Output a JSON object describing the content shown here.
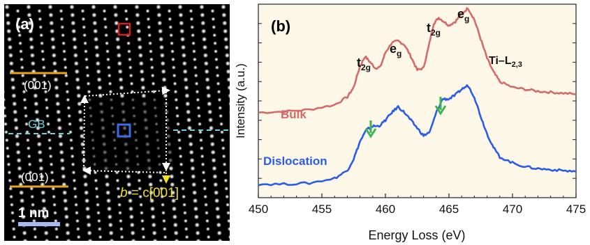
{
  "panel_a": {
    "label": "(a)",
    "plane_top": "(001)",
    "plane_bottom": "(001)",
    "gb_label": "GB",
    "burgers_italic": "b",
    "burgers_rest": " = c[001]",
    "scale_label": "1 nm",
    "colors": {
      "plane_line": "#e8a31c",
      "gb_line": "#6fd3d8",
      "red_box": "#d42020",
      "blue_box": "#3a6ee8",
      "burgers": "#f0e020",
      "scale_bar": "#a8b8f0",
      "background": "#000000"
    },
    "icons": [
      "red-square-marker",
      "blue-square-marker",
      "burgers-circuit-arrows"
    ]
  },
  "panel_b": {
    "label": "(b)",
    "edge_label": "Ti–L",
    "edge_sub": "2,3",
    "peaks": [
      {
        "main": "t",
        "sub": "2g"
      },
      {
        "main": "e",
        "sub": "g"
      },
      {
        "main": "t",
        "sub": "2g"
      },
      {
        "main": "e",
        "sub": "g"
      }
    ],
    "bulk_label": "Bulk",
    "dislocation_label": "Dislocation",
    "arrow_icons": [
      "green-down-arrow-icon",
      "green-down-arrow-icon"
    ],
    "colors": {
      "bulk": "#d46a6a",
      "dislocation": "#2a5ce8",
      "arrow": "#3cb550",
      "panel_bg": "#fdf7e8"
    }
  },
  "chart_data": {
    "type": "line",
    "xlabel": "Energy Loss (eV)",
    "ylabel": "Intensity (a.u.)",
    "xlim": [
      450,
      475
    ],
    "ylim": [
      0,
      10
    ],
    "x_ticks": [
      "450",
      "455",
      "460",
      "465",
      "470",
      "475"
    ],
    "y_ticks_labeled": false,
    "grid": false,
    "series": [
      {
        "name": "Bulk",
        "x": [
          450,
          452,
          454,
          456,
          457,
          457.5,
          458,
          458.4,
          458.8,
          459.2,
          459.6,
          460,
          460.5,
          461,
          461.5,
          462,
          462.5,
          463,
          463.4,
          463.8,
          464.2,
          464.6,
          465,
          465.5,
          466,
          466.5,
          467,
          467.5,
          468,
          468.5,
          469,
          470,
          471,
          472,
          473,
          474,
          475
        ],
        "y": [
          4.4,
          4.45,
          4.55,
          4.8,
          5.2,
          5.7,
          6.8,
          7.3,
          7.0,
          6.7,
          6.75,
          7.5,
          8.0,
          8.1,
          7.9,
          7.3,
          6.6,
          6.7,
          7.8,
          9.0,
          9.3,
          9.1,
          8.9,
          9.1,
          9.5,
          9.8,
          9.2,
          8.2,
          7.2,
          6.5,
          6.0,
          5.7,
          5.6,
          5.5,
          5.45,
          5.4,
          5.35
        ]
      },
      {
        "name": "Dislocation",
        "x": [
          450,
          452,
          454,
          456,
          457,
          457.5,
          458,
          458.5,
          459,
          459.5,
          460,
          460.5,
          461,
          461.5,
          462,
          462.5,
          463,
          463.5,
          464,
          464.5,
          465,
          465.5,
          466,
          466.5,
          467,
          467.5,
          468,
          468.5,
          469,
          470,
          471,
          472,
          473,
          474,
          475
        ],
        "y": [
          0.7,
          0.7,
          0.75,
          1.0,
          1.4,
          2.0,
          2.9,
          3.5,
          3.7,
          3.7,
          4.0,
          4.4,
          4.7,
          4.4,
          4.0,
          3.6,
          3.2,
          3.4,
          4.4,
          5.1,
          5.1,
          5.3,
          5.6,
          5.8,
          5.2,
          4.2,
          3.3,
          2.6,
          2.1,
          1.8,
          1.6,
          1.5,
          1.45,
          1.4,
          1.35
        ]
      }
    ]
  }
}
